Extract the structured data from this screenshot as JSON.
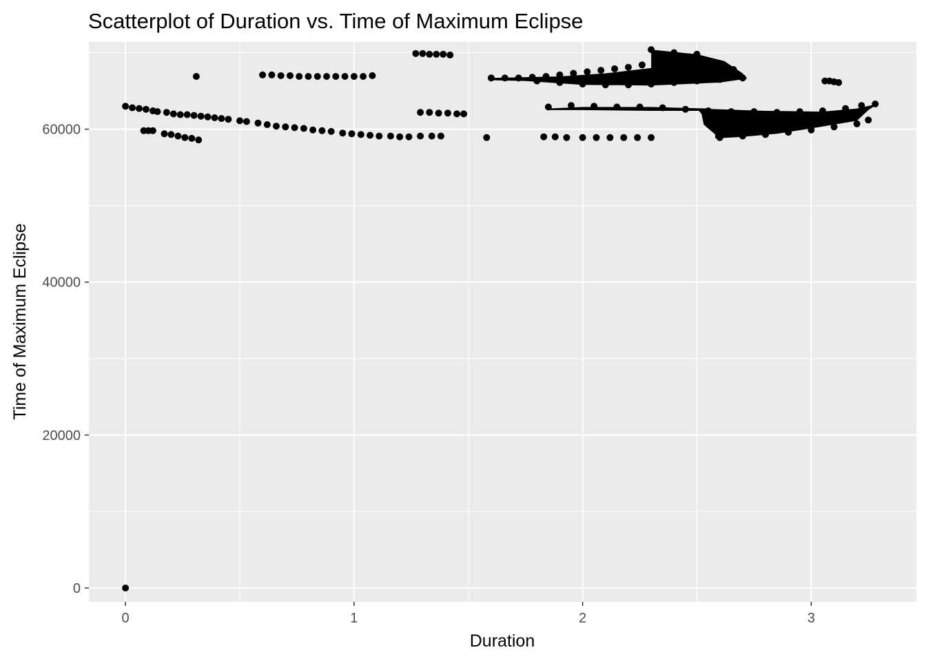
{
  "chart_data": {
    "type": "scatter",
    "title": "Scatterplot of Duration vs. Time of Maximum Eclipse",
    "xlabel": "Duration",
    "ylabel": "Time of Maximum Eclipse",
    "xlim": [
      -0.16,
      3.46
    ],
    "ylim": [
      -1800,
      71400
    ],
    "x_ticks": [
      0,
      1,
      2,
      3
    ],
    "x_tick_labels": [
      "0",
      "1",
      "2",
      "3"
    ],
    "y_ticks": [
      0,
      20000,
      40000,
      60000
    ],
    "y_tick_labels": [
      "0",
      "20000",
      "40000",
      "60000"
    ],
    "grid": true,
    "background": "#ebebeb",
    "grid_color": "#ffffff",
    "point_color": "#000000",
    "points": [
      [
        0.0,
        0
      ],
      [
        0.0,
        63000
      ],
      [
        0.03,
        62800
      ],
      [
        0.06,
        62700
      ],
      [
        0.09,
        62600
      ],
      [
        0.12,
        62400
      ],
      [
        0.14,
        62300
      ],
      [
        0.18,
        62200
      ],
      [
        0.21,
        62000
      ],
      [
        0.24,
        61900
      ],
      [
        0.27,
        61900
      ],
      [
        0.3,
        61800
      ],
      [
        0.33,
        61700
      ],
      [
        0.36,
        61600
      ],
      [
        0.39,
        61500
      ],
      [
        0.42,
        61400
      ],
      [
        0.45,
        61300
      ],
      [
        0.5,
        61100
      ],
      [
        0.53,
        61000
      ],
      [
        0.58,
        60800
      ],
      [
        0.62,
        60600
      ],
      [
        0.66,
        60400
      ],
      [
        0.7,
        60300
      ],
      [
        0.74,
        60200
      ],
      [
        0.78,
        60100
      ],
      [
        0.82,
        59900
      ],
      [
        0.86,
        59800
      ],
      [
        0.9,
        59700
      ],
      [
        0.95,
        59500
      ],
      [
        0.99,
        59400
      ],
      [
        1.03,
        59300
      ],
      [
        1.07,
        59200
      ],
      [
        1.11,
        59100
      ],
      [
        1.16,
        59100
      ],
      [
        1.2,
        59000
      ],
      [
        1.24,
        59000
      ],
      [
        1.29,
        59100
      ],
      [
        1.34,
        59100
      ],
      [
        1.38,
        59100
      ],
      [
        0.08,
        59800
      ],
      [
        0.1,
        59800
      ],
      [
        0.12,
        59800
      ],
      [
        0.17,
        59400
      ],
      [
        0.2,
        59300
      ],
      [
        0.23,
        59100
      ],
      [
        0.26,
        58900
      ],
      [
        0.29,
        58800
      ],
      [
        0.32,
        58600
      ],
      [
        0.31,
        66900
      ],
      [
        0.6,
        67100
      ],
      [
        0.64,
        67100
      ],
      [
        0.68,
        67000
      ],
      [
        0.72,
        67000
      ],
      [
        0.76,
        66900
      ],
      [
        0.8,
        66900
      ],
      [
        0.84,
        66900
      ],
      [
        0.88,
        66900
      ],
      [
        0.92,
        66900
      ],
      [
        0.96,
        66900
      ],
      [
        1.0,
        66900
      ],
      [
        1.04,
        66900
      ],
      [
        1.08,
        67000
      ],
      [
        1.27,
        69900
      ],
      [
        1.3,
        69900
      ],
      [
        1.33,
        69800
      ],
      [
        1.36,
        69800
      ],
      [
        1.39,
        69800
      ],
      [
        1.42,
        69700
      ],
      [
        1.29,
        62200
      ],
      [
        1.33,
        62200
      ],
      [
        1.37,
        62100
      ],
      [
        1.41,
        62100
      ],
      [
        1.45,
        62000
      ],
      [
        1.48,
        62000
      ],
      [
        1.58,
        58900
      ],
      [
        1.83,
        59000
      ],
      [
        1.88,
        59000
      ],
      [
        1.93,
        58900
      ],
      [
        2.0,
        58900
      ],
      [
        2.06,
        58900
      ],
      [
        2.12,
        58900
      ],
      [
        2.18,
        58900
      ],
      [
        2.24,
        58900
      ],
      [
        2.3,
        58900
      ],
      [
        1.6,
        66700
      ],
      [
        1.66,
        66700
      ],
      [
        1.72,
        66700
      ],
      [
        1.78,
        66800
      ],
      [
        1.84,
        66900
      ],
      [
        1.9,
        67100
      ],
      [
        1.96,
        67300
      ],
      [
        2.02,
        67500
      ],
      [
        2.08,
        67700
      ],
      [
        2.14,
        67900
      ],
      [
        2.2,
        68100
      ],
      [
        2.26,
        68400
      ],
      [
        2.32,
        68700
      ],
      [
        2.38,
        69100
      ],
      [
        2.44,
        69500
      ],
      [
        2.5,
        69800
      ],
      [
        1.8,
        66300
      ],
      [
        1.9,
        66100
      ],
      [
        2.0,
        65900
      ],
      [
        2.1,
        65800
      ],
      [
        2.2,
        65800
      ],
      [
        2.3,
        65900
      ],
      [
        2.4,
        66100
      ],
      [
        2.5,
        66300
      ],
      [
        2.6,
        66500
      ],
      [
        2.7,
        66700
      ],
      [
        2.3,
        70400
      ],
      [
        2.4,
        70000
      ],
      [
        2.5,
        69400
      ],
      [
        2.6,
        68600
      ],
      [
        2.66,
        67800
      ],
      [
        1.85,
        62900
      ],
      [
        1.95,
        63100
      ],
      [
        2.05,
        63000
      ],
      [
        2.15,
        62900
      ],
      [
        2.25,
        62900
      ],
      [
        2.35,
        62800
      ],
      [
        2.45,
        62600
      ],
      [
        2.55,
        62400
      ],
      [
        2.65,
        62300
      ],
      [
        2.75,
        62300
      ],
      [
        2.85,
        62200
      ],
      [
        2.95,
        62300
      ],
      [
        3.05,
        62400
      ],
      [
        3.15,
        62700
      ],
      [
        3.22,
        63100
      ],
      [
        3.28,
        63300
      ],
      [
        2.6,
        58900
      ],
      [
        2.7,
        59100
      ],
      [
        2.8,
        59300
      ],
      [
        2.9,
        59600
      ],
      [
        3.0,
        59900
      ],
      [
        3.1,
        60300
      ],
      [
        3.2,
        60700
      ],
      [
        3.25,
        61200
      ],
      [
        3.06,
        66300
      ],
      [
        3.08,
        66300
      ],
      [
        3.1,
        66200
      ],
      [
        3.12,
        66100
      ]
    ]
  }
}
